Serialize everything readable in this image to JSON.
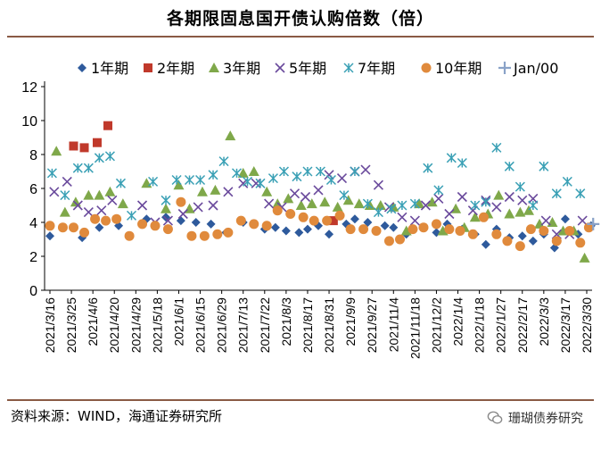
{
  "chart_data": {
    "type": "scatter",
    "title": "各期限固息国开债认购倍数（倍）",
    "xlabel": "",
    "ylabel": "",
    "ylim": [
      0,
      12
    ],
    "yticks": [
      0,
      2,
      4,
      6,
      8,
      10,
      12
    ],
    "categories": [
      "2021/3/16",
      "2021/3/25",
      "2021/4/6",
      "2021/4/20",
      "2021/4/29",
      "2021/5/18",
      "2021/6/1",
      "2021/6/15",
      "2021/6/29",
      "2021/7/13",
      "2021/7/22",
      "2021/8/3",
      "2021/8/17",
      "2021/8/31",
      "2021/9/9",
      "2021/9/27",
      "2021/11/4",
      "2021/11/18",
      "2021/12/2",
      "2022/1/4",
      "2022/1/18",
      "2022/1/27",
      "2022/2/17",
      "2022/3/3",
      "2022/3/17",
      "2022/3/30"
    ],
    "legend_position": "top",
    "series": [
      {
        "name": "1年期",
        "marker": "diamond",
        "color": "#2e5a9c",
        "x": [
          0,
          1.5,
          2.3,
          3.2,
          4.5,
          5.4,
          6.1,
          6.8,
          7.5,
          8.2,
          9,
          10,
          10.5,
          11,
          11.6,
          12,
          12.5,
          13,
          13.8,
          14.2,
          14.8,
          15.6,
          16,
          16.6,
          17.4,
          18,
          18.5,
          19.2,
          19.8,
          20.3,
          20.8,
          21.4,
          22,
          22.5,
          23,
          23.5,
          24,
          24.6,
          25.2
        ],
        "y": [
          3.2,
          3.1,
          3.7,
          3.8,
          4.2,
          4.3,
          4.1,
          4,
          3.9,
          3.4,
          4,
          3.6,
          3.7,
          3.5,
          3.4,
          3.6,
          3.8,
          3.3,
          3.9,
          4.2,
          4,
          3.8,
          3.7,
          3.3,
          3.7,
          3.4,
          3.9,
          3.6,
          3.3,
          2.7,
          3.6,
          3.1,
          3.2,
          2.9,
          3.3,
          2.5,
          4.2,
          3.3,
          3.8
        ]
      },
      {
        "name": "2年期",
        "marker": "square",
        "color": "#c0392b",
        "x": [
          1.1,
          1.6,
          2.2,
          2.7,
          13.2
        ],
        "y": [
          8.5,
          8.4,
          8.7,
          9.7,
          4.1
        ]
      },
      {
        "name": "3年期",
        "marker": "triangle",
        "color": "#7fa84a",
        "x": [
          0.3,
          0.7,
          1.2,
          1.8,
          2.3,
          2.8,
          3.4,
          4.5,
          5.4,
          6,
          6.5,
          7.1,
          7.7,
          8.4,
          9,
          9.5,
          10.1,
          10.6,
          11.1,
          11.7,
          12.2,
          12.8,
          13.4,
          13.9,
          14.4,
          14.9,
          15.4,
          16,
          16.6,
          17.2,
          17.8,
          18.3,
          18.9,
          19.3,
          19.8,
          20.4,
          20.9,
          21.4,
          21.9,
          22.3,
          22.8,
          23.4,
          23.9,
          24.4,
          24.9
        ],
        "y": [
          8.2,
          4.6,
          5.2,
          5.6,
          5.6,
          5.8,
          5.1,
          6.3,
          4.8,
          6.2,
          4.8,
          5.8,
          5.9,
          9.1,
          6.9,
          7,
          5.8,
          5.1,
          5.4,
          5,
          5.1,
          5.2,
          4.9,
          5.3,
          5.1,
          5,
          5,
          4.9,
          3.5,
          5.1,
          5.2,
          3.5,
          4.8,
          3.7,
          4.3,
          4.5,
          5.6,
          4.5,
          4.6,
          4.7,
          3.9,
          4,
          3.5,
          3.5,
          1.9
        ]
      },
      {
        "name": "5年期",
        "marker": "x",
        "color": "#6a4a9c",
        "x": [
          0.2,
          0.8,
          1.3,
          1.8,
          2.4,
          2.9,
          4.3,
          4.9,
          5.5,
          6.2,
          6.9,
          7.6,
          8.3,
          9,
          9.6,
          10.2,
          10.8,
          11.4,
          11.9,
          12.5,
          13,
          13.6,
          14.2,
          14.7,
          15.3,
          15.8,
          16.4,
          17,
          17.5,
          18.1,
          18.6,
          19.2,
          19.7,
          20.3,
          20.8,
          21.4,
          22,
          22.5,
          23.1,
          23.6,
          24.2,
          24.8
        ],
        "y": [
          5.8,
          6.4,
          5,
          4.6,
          4.7,
          5.3,
          5,
          4,
          4.1,
          4.5,
          4.9,
          5,
          5.8,
          6.3,
          6.3,
          5.1,
          4.9,
          5.7,
          5.5,
          5.9,
          6.8,
          6.6,
          7,
          7.1,
          6.2,
          4.9,
          4.3,
          4.1,
          5,
          5.4,
          4.5,
          5.5,
          4.7,
          5.3,
          4.9,
          5.5,
          5.3,
          5.4,
          4.1,
          3.3,
          3.3,
          4.1
        ]
      },
      {
        "name": "7年期",
        "marker": "star",
        "color": "#3aa0b5",
        "x": [
          0.1,
          0.7,
          1.3,
          1.8,
          2.3,
          2.8,
          3.3,
          3.8,
          4.8,
          5.4,
          5.9,
          6.5,
          7,
          7.6,
          8.1,
          8.7,
          9.2,
          9.8,
          10.4,
          10.9,
          11.5,
          12,
          12.6,
          13.1,
          13.7,
          14.2,
          14.8,
          15.3,
          15.9,
          16.4,
          17,
          17.6,
          18.1,
          18.7,
          19.2,
          19.8,
          20.3,
          20.8,
          21.4,
          21.9,
          22.5,
          23,
          23.6,
          24.1,
          24.7
        ],
        "y": [
          6.9,
          5.6,
          7.2,
          7.2,
          7.8,
          7.9,
          6.3,
          4.4,
          6.4,
          5.3,
          6.5,
          6.5,
          6.5,
          6.8,
          7.6,
          6.9,
          6.4,
          6.3,
          6.6,
          7,
          6.7,
          7,
          7,
          6.5,
          5.6,
          7,
          5.1,
          4.6,
          4.8,
          5,
          5.1,
          7.2,
          5.9,
          7.8,
          7.5,
          5,
          5.2,
          8.4,
          7.3,
          6.1,
          5,
          7.3,
          5.7,
          6.4,
          5.7
        ]
      },
      {
        "name": "10年期",
        "marker": "circle",
        "color": "#e08a3c",
        "x": [
          0,
          0.6,
          1.1,
          1.6,
          2.1,
          2.6,
          3.1,
          3.7,
          4.3,
          4.9,
          5.5,
          6.1,
          6.6,
          7.2,
          7.8,
          8.3,
          8.9,
          9.5,
          10.1,
          10.6,
          11.2,
          11.8,
          12.3,
          12.9,
          13.5,
          14,
          14.6,
          15.2,
          15.8,
          16.3,
          16.9,
          17.4,
          18,
          18.6,
          19.1,
          19.7,
          20.2,
          20.8,
          21.3,
          21.9,
          22.4,
          23,
          23.6,
          24.2,
          24.7,
          25.1
        ],
        "y": [
          3.8,
          3.7,
          3.7,
          3.4,
          4.2,
          4.1,
          4.2,
          3.2,
          3.9,
          3.8,
          3.6,
          5.2,
          3.2,
          3.2,
          3.3,
          3.4,
          4.1,
          3.9,
          3.8,
          4.7,
          4.5,
          4.3,
          4.1,
          4.1,
          4.4,
          3.6,
          3.6,
          3.5,
          2.9,
          3,
          3.6,
          3.7,
          3.9,
          3.6,
          3.5,
          3.3,
          4.3,
          3.3,
          2.9,
          2.6,
          3.6,
          3.5,
          2.9,
          3.5,
          2.8,
          3.7
        ]
      },
      {
        "name": "Jan/00",
        "marker": "plus",
        "color": "#8aa2c8",
        "x": [
          25.3
        ],
        "y": [
          3.9
        ]
      }
    ]
  },
  "source_text": "资料来源：WIND，海通证券研究所",
  "brand_text": "珊瑚债券研究"
}
